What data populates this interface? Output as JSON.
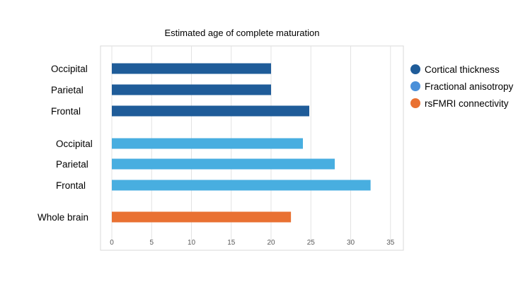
{
  "chart_data": {
    "type": "bar",
    "orientation": "horizontal",
    "title": "Estimated age of complete maturation",
    "xlabel": "",
    "ylabel": "",
    "xlim": [
      0,
      35
    ],
    "x_ticks": [
      0,
      5,
      10,
      15,
      20,
      25,
      30,
      35
    ],
    "grid": true,
    "legend_position": "right",
    "groups": [
      {
        "series": "Cortical thickness",
        "color": "#1f5c99",
        "bars": [
          {
            "label": "Occipital",
            "value": 20
          },
          {
            "label": "Parietal",
            "value": 20
          },
          {
            "label": "Frontal",
            "value": 24.8
          }
        ]
      },
      {
        "series": "Fractional anisotropy",
        "color": "#48aee0",
        "bars": [
          {
            "label": "Occipital",
            "value": 24
          },
          {
            "label": "Parietal",
            "value": 28
          },
          {
            "label": "Frontal",
            "value": 32.5
          }
        ]
      },
      {
        "series": "rsFMRI connectivity",
        "color": "#e97132",
        "bars": [
          {
            "label": "Whole brain",
            "value": 22.5
          }
        ]
      }
    ],
    "legend": [
      {
        "name": "Cortical thickness",
        "color": "#1f5c99"
      },
      {
        "name": "Fractional anisotropy",
        "color": "#4a90d9"
      },
      {
        "name": "rsFMRI connectivity",
        "color": "#e97132"
      }
    ]
  }
}
